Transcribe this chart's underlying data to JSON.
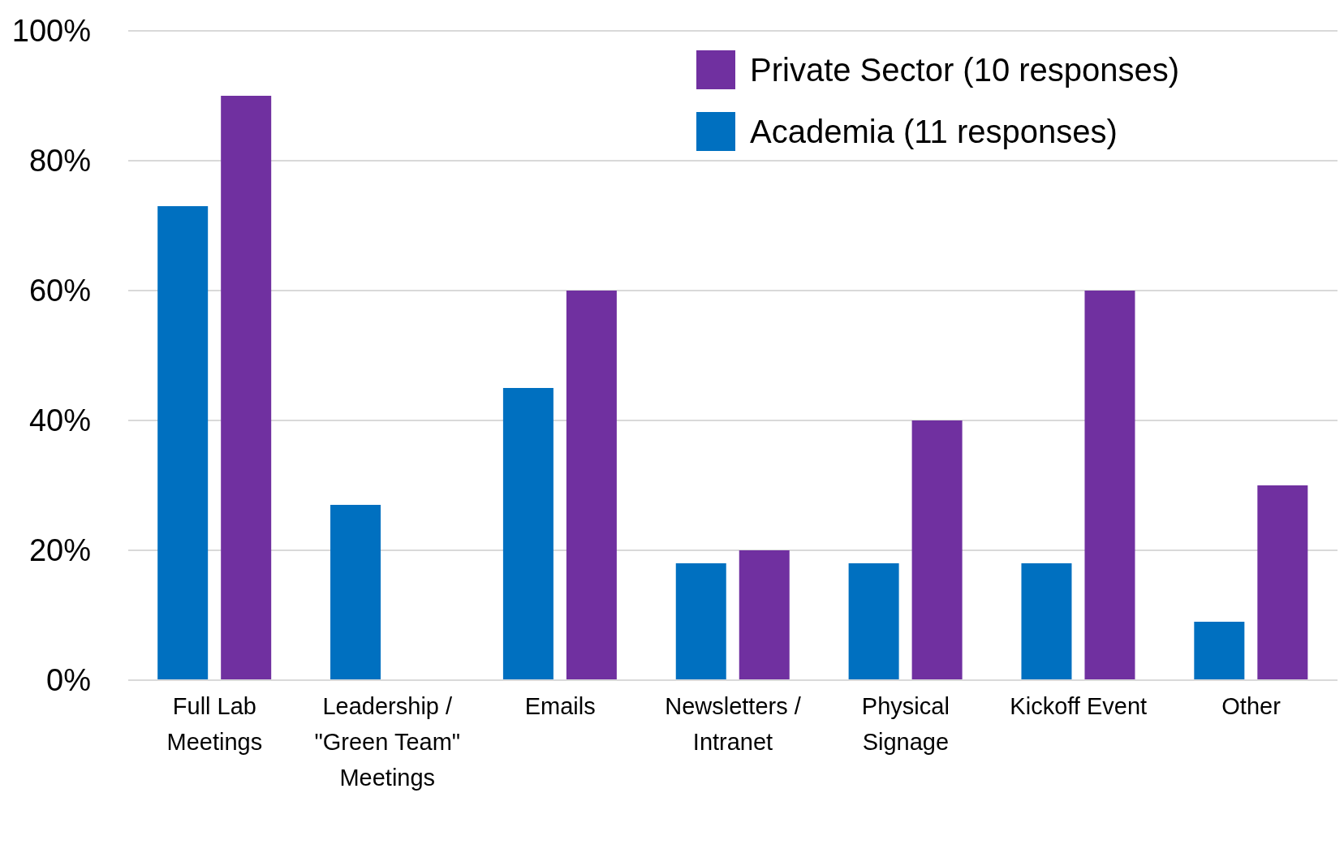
{
  "chart_data": {
    "type": "bar",
    "categories": [
      "Full Lab Meetings",
      "Leadership / \"Green Team\" Meetings",
      "Emails",
      "Newsletters / Intranet",
      "Physical Signage",
      "Kickoff Event",
      "Other"
    ],
    "series": [
      {
        "name": "Academia (11 responses)",
        "color": "#0070c0",
        "values": [
          73,
          27,
          45,
          18,
          18,
          18,
          9
        ]
      },
      {
        "name": "Private Sector (10 responses)",
        "color": "#7030a0",
        "values": [
          90,
          0,
          60,
          20,
          40,
          60,
          30
        ]
      }
    ],
    "ylim": [
      0,
      100
    ],
    "yticks": [
      {
        "value": 0,
        "label": "0%"
      },
      {
        "value": 20,
        "label": "20%"
      },
      {
        "value": 40,
        "label": "40%"
      },
      {
        "value": 60,
        "label": "60%"
      },
      {
        "value": 80,
        "label": "80%"
      },
      {
        "value": 100,
        "label": "100%"
      }
    ],
    "grid": "y",
    "legend": "top right"
  }
}
